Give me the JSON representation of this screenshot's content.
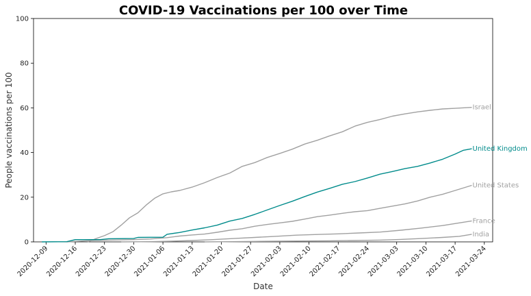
{
  "chart_data": {
    "type": "line",
    "title": "COVID-19 Vaccinations per 100 over Time",
    "xlabel": "Date",
    "ylabel": "People vaccinations per 100",
    "ylim": [
      0,
      100
    ],
    "yticks": [
      0,
      20,
      40,
      60,
      80,
      100
    ],
    "xlim": [
      "2020-12-06",
      "2021-03-26"
    ],
    "xticks": [
      "2020-12-09",
      "2020-12-16",
      "2020-12-23",
      "2020-12-30",
      "2021-01-06",
      "2021-01-13",
      "2021-01-20",
      "2021-01-27",
      "2021-02-03",
      "2021-02-10",
      "2021-02-17",
      "2021-02-24",
      "2021-03-03",
      "2021-03-10",
      "2021-03-17",
      "2021-03-24"
    ],
    "grid": false,
    "legend": "end-of-line labels",
    "colors": {
      "highlight": "#008b8b",
      "muted": "#a0a0a0"
    },
    "series": [
      {
        "name": "Israel",
        "highlight": false,
        "points": [
          [
            "2020-12-19",
            0
          ],
          [
            "2020-12-21",
            1.5
          ],
          [
            "2020-12-23",
            2.8
          ],
          [
            "2020-12-25",
            4.5
          ],
          [
            "2020-12-27",
            7.5
          ],
          [
            "2020-12-29",
            10.8
          ],
          [
            "2020-12-31",
            13.0
          ],
          [
            "2021-01-02",
            16.5
          ],
          [
            "2021-01-04",
            19.5
          ],
          [
            "2021-01-06",
            21.5
          ],
          [
            "2021-01-08",
            22.4
          ],
          [
            "2021-01-10",
            23.0
          ],
          [
            "2021-01-13",
            24.5
          ],
          [
            "2021-01-16",
            26.5
          ],
          [
            "2021-01-19",
            28.8
          ],
          [
            "2021-01-22",
            30.8
          ],
          [
            "2021-01-25",
            33.8
          ],
          [
            "2021-01-28",
            35.5
          ],
          [
            "2021-01-31",
            37.8
          ],
          [
            "2021-02-03",
            39.6
          ],
          [
            "2021-02-06",
            41.5
          ],
          [
            "2021-02-09",
            43.8
          ],
          [
            "2021-02-12",
            45.5
          ],
          [
            "2021-02-15",
            47.5
          ],
          [
            "2021-02-18",
            49.3
          ],
          [
            "2021-02-21",
            51.8
          ],
          [
            "2021-02-24",
            53.5
          ],
          [
            "2021-02-27",
            54.8
          ],
          [
            "2021-03-02",
            56.3
          ],
          [
            "2021-03-05",
            57.3
          ],
          [
            "2021-03-08",
            58.2
          ],
          [
            "2021-03-11",
            58.9
          ],
          [
            "2021-03-14",
            59.5
          ],
          [
            "2021-03-17",
            59.8
          ],
          [
            "2021-03-21",
            60.2
          ]
        ]
      },
      {
        "name": "United Kingdom",
        "highlight": true,
        "points": [
          [
            "2020-12-08",
            0
          ],
          [
            "2020-12-14",
            0.1
          ],
          [
            "2020-12-16",
            1.0
          ],
          [
            "2020-12-22",
            1.0
          ],
          [
            "2020-12-24",
            1.4
          ],
          [
            "2020-12-30",
            1.5
          ],
          [
            "2020-12-31",
            2.0
          ],
          [
            "2021-01-06",
            2.1
          ],
          [
            "2021-01-07",
            3.4
          ],
          [
            "2021-01-10",
            4.2
          ],
          [
            "2021-01-13",
            5.3
          ],
          [
            "2021-01-16",
            6.3
          ],
          [
            "2021-01-19",
            7.5
          ],
          [
            "2021-01-22",
            9.3
          ],
          [
            "2021-01-25",
            10.5
          ],
          [
            "2021-01-28",
            12.3
          ],
          [
            "2021-01-31",
            14.3
          ],
          [
            "2021-02-03",
            16.3
          ],
          [
            "2021-02-06",
            18.2
          ],
          [
            "2021-02-09",
            20.3
          ],
          [
            "2021-02-12",
            22.3
          ],
          [
            "2021-02-15",
            24.0
          ],
          [
            "2021-02-18",
            25.8
          ],
          [
            "2021-02-21",
            27.0
          ],
          [
            "2021-02-24",
            28.6
          ],
          [
            "2021-02-27",
            30.3
          ],
          [
            "2021-03-02",
            31.5
          ],
          [
            "2021-03-05",
            32.8
          ],
          [
            "2021-03-08",
            33.8
          ],
          [
            "2021-03-11",
            35.3
          ],
          [
            "2021-03-14",
            37.0
          ],
          [
            "2021-03-17",
            39.3
          ],
          [
            "2021-03-19",
            41.0
          ],
          [
            "2021-03-21",
            41.7
          ]
        ]
      },
      {
        "name": "United States",
        "highlight": false,
        "points": [
          [
            "2020-12-14",
            0
          ],
          [
            "2020-12-20",
            0.6
          ],
          [
            "2020-12-24",
            0.8
          ],
          [
            "2020-12-30",
            1.0
          ],
          [
            "2021-01-03",
            1.3
          ],
          [
            "2021-01-07",
            1.9
          ],
          [
            "2021-01-10",
            2.6
          ],
          [
            "2021-01-13",
            3.1
          ],
          [
            "2021-01-16",
            3.5
          ],
          [
            "2021-01-19",
            4.3
          ],
          [
            "2021-01-22",
            5.2
          ],
          [
            "2021-01-25",
            5.9
          ],
          [
            "2021-01-28",
            7.0
          ],
          [
            "2021-01-31",
            7.8
          ],
          [
            "2021-02-03",
            8.5
          ],
          [
            "2021-02-06",
            9.2
          ],
          [
            "2021-02-09",
            10.2
          ],
          [
            "2021-02-12",
            11.3
          ],
          [
            "2021-02-15",
            12.0
          ],
          [
            "2021-02-18",
            12.8
          ],
          [
            "2021-02-21",
            13.5
          ],
          [
            "2021-02-24",
            14.0
          ],
          [
            "2021-02-27",
            15.0
          ],
          [
            "2021-03-02",
            16.0
          ],
          [
            "2021-03-05",
            17.0
          ],
          [
            "2021-03-08",
            18.3
          ],
          [
            "2021-03-11",
            20.0
          ],
          [
            "2021-03-14",
            21.3
          ],
          [
            "2021-03-17",
            23.0
          ],
          [
            "2021-03-21",
            25.3
          ]
        ]
      },
      {
        "name": "France",
        "highlight": false,
        "points": [
          [
            "2020-12-27",
            0
          ],
          [
            "2021-01-03",
            0.1
          ],
          [
            "2021-01-08",
            0.3
          ],
          [
            "2021-01-13",
            0.6
          ],
          [
            "2021-01-18",
            1.0
          ],
          [
            "2021-01-23",
            1.5
          ],
          [
            "2021-01-28",
            2.0
          ],
          [
            "2021-02-02",
            2.5
          ],
          [
            "2021-02-07",
            3.0
          ],
          [
            "2021-02-12",
            3.3
          ],
          [
            "2021-02-17",
            3.6
          ],
          [
            "2021-02-22",
            4.0
          ],
          [
            "2021-02-27",
            4.4
          ],
          [
            "2021-03-04",
            5.2
          ],
          [
            "2021-03-09",
            6.2
          ],
          [
            "2021-03-14",
            7.3
          ],
          [
            "2021-03-18",
            8.5
          ],
          [
            "2021-03-21",
            9.4
          ]
        ]
      },
      {
        "name": "India",
        "highlight": false,
        "points": [
          [
            "2021-01-16",
            0
          ],
          [
            "2021-01-22",
            0.1
          ],
          [
            "2021-01-28",
            0.2
          ],
          [
            "2021-02-03",
            0.3
          ],
          [
            "2021-02-09",
            0.4
          ],
          [
            "2021-02-15",
            0.5
          ],
          [
            "2021-02-21",
            0.6
          ],
          [
            "2021-02-27",
            0.8
          ],
          [
            "2021-03-04",
            1.1
          ],
          [
            "2021-03-09",
            1.5
          ],
          [
            "2021-03-14",
            2.0
          ],
          [
            "2021-03-18",
            2.5
          ],
          [
            "2021-03-21",
            3.4
          ]
        ]
      }
    ]
  }
}
